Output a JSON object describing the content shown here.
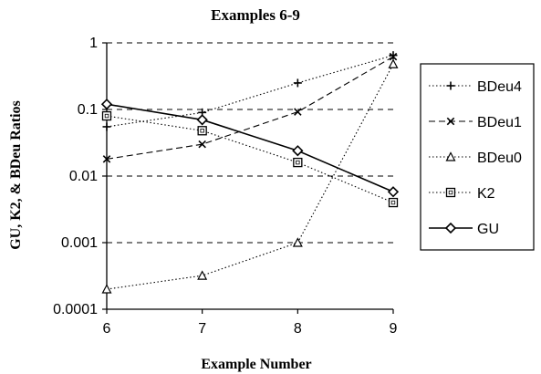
{
  "chart_data": {
    "type": "line",
    "title": "Examples 6-9",
    "xlabel": "Example Number",
    "ylabel": "GU, K2, & BDeu Ratios",
    "x": [
      6,
      7,
      8,
      9
    ],
    "xlim": [
      6,
      9
    ],
    "ylim": [
      0.0001,
      1
    ],
    "y_scale": "log",
    "y_ticks": [
      1,
      0.1,
      0.01,
      0.001,
      0.0001
    ],
    "y_tick_labels": [
      "1",
      "0.1",
      "0.01",
      "0.001",
      "0.0001"
    ],
    "x_tick_labels": [
      "6",
      "7",
      "8",
      "9"
    ],
    "grid": "horizontal-dashed",
    "legend_position": "right",
    "series": [
      {
        "name": "BDeu4",
        "marker": "plus",
        "dash": "dotted",
        "values": [
          0.055,
          0.09,
          0.25,
          0.65
        ]
      },
      {
        "name": "BDeu1",
        "marker": "x",
        "dash": "dashed",
        "values": [
          0.018,
          0.03,
          0.092,
          0.62
        ]
      },
      {
        "name": "BDeu0",
        "marker": "triangle",
        "dash": "dotted",
        "values": [
          0.0002,
          0.00032,
          0.001,
          0.48
        ]
      },
      {
        "name": "K2",
        "marker": "square",
        "dash": "dotted",
        "values": [
          0.08,
          0.048,
          0.016,
          0.004
        ]
      },
      {
        "name": "GU",
        "marker": "diamond",
        "dash": "solid",
        "values": [
          0.12,
          0.07,
          0.024,
          0.0058
        ]
      }
    ]
  }
}
